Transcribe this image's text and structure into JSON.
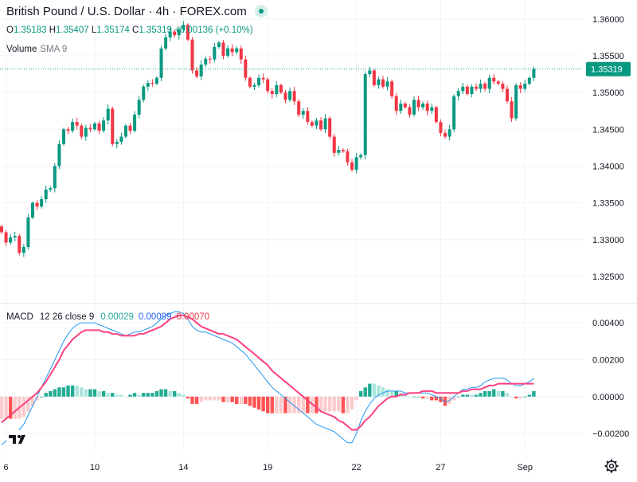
{
  "header": {
    "title": "British Pound / U.S. Dollar · 4h · FOREX.com",
    "ohlc": {
      "o_label": "O",
      "o_value": "1.35183",
      "h_label": "H",
      "h_value": "1.35407",
      "l_label": "L",
      "l_value": "1.35174",
      "c_label": "C",
      "c_value": "1.35319",
      "change": "+0.00136 (+0.10%)"
    },
    "volume_label": "Volume",
    "volume_sma": "SMA 9",
    "macd_label": "MACD",
    "macd_params": "12 26 close 9",
    "macd_values": [
      "0.00029",
      "0.00099",
      "0.00070"
    ]
  },
  "colors": {
    "up": "#089981",
    "down": "#f23645",
    "hist_up_strong": "#22ab94",
    "hist_up_weak": "#acE5dc",
    "hist_down_strong": "#ff5252",
    "hist_down_weak": "#fccbcd",
    "macd_line": "#2196f3",
    "signal_line": "#ff4081",
    "price_label_bg": "#089981",
    "grid": "#f0f3fa",
    "axis_text": "#131722"
  },
  "icons": {
    "logo": "tradingview-logo-icon",
    "settings": "gear-icon",
    "market_status": "market-open-icon"
  },
  "chart_data": [
    {
      "type": "candlestick",
      "title": "British Pound / U.S. Dollar · 4h · FOREX.com",
      "current_price": 1.35319,
      "current_price_label": "1.35319",
      "ylim": [
        1.3225,
        1.3615
      ],
      "y_ticks": [
        "1.36000",
        "1.35500",
        "1.35000",
        "1.34500",
        "1.34000",
        "1.33500",
        "1.33000",
        "1.32500"
      ],
      "x_tick_labels": [
        {
          "label": "6",
          "bar": 1
        },
        {
          "label": "10",
          "bar": 21
        },
        {
          "label": "14",
          "bar": 41
        },
        {
          "label": "19",
          "bar": 60
        },
        {
          "label": "22",
          "bar": 80
        },
        {
          "label": "27",
          "bar": 99
        },
        {
          "label": "Sep",
          "bar": 118
        }
      ],
      "close": [
        1.331,
        1.3296,
        1.3303,
        1.3305,
        1.3282,
        1.329,
        1.333,
        1.335,
        1.3345,
        1.3355,
        1.3368,
        1.337,
        1.34,
        1.343,
        1.345,
        1.3448,
        1.346,
        1.3455,
        1.344,
        1.3452,
        1.345,
        1.3458,
        1.3448,
        1.3462,
        1.3478,
        1.343,
        1.3433,
        1.344,
        1.3455,
        1.3448,
        1.347,
        1.349,
        1.3508,
        1.3513,
        1.3512,
        1.352,
        1.356,
        1.3575,
        1.3583,
        1.3578,
        1.3586,
        1.3592,
        1.3572,
        1.353,
        1.3522,
        1.3538,
        1.3546,
        1.3545,
        1.3562,
        1.3568,
        1.355,
        1.356,
        1.3555,
        1.356,
        1.3545,
        1.352,
        1.3508,
        1.351,
        1.352,
        1.3518,
        1.3502,
        1.3498,
        1.351,
        1.35,
        1.349,
        1.3502,
        1.3488,
        1.347,
        1.3475,
        1.346,
        1.3455,
        1.3462,
        1.345,
        1.3465,
        1.344,
        1.3418,
        1.3422,
        1.342,
        1.3405,
        1.3395,
        1.3412,
        1.3415,
        1.3525,
        1.353,
        1.351,
        1.3518,
        1.3508,
        1.3515,
        1.3495,
        1.3475,
        1.3485,
        1.348,
        1.347,
        1.349,
        1.348,
        1.3485,
        1.3475,
        1.348,
        1.346,
        1.3445,
        1.344,
        1.345,
        1.3495,
        1.3502,
        1.3508,
        1.3498,
        1.3508,
        1.3505,
        1.3512,
        1.3505,
        1.352,
        1.3515,
        1.3512,
        1.3505,
        1.3488,
        1.3465,
        1.351,
        1.3505,
        1.3512,
        1.352,
        1.3532
      ],
      "macd_panel": {
        "macd_ylim": [
          -0.0029,
          0.005
        ],
        "y_ticks": [
          "0.00400",
          "0.00200",
          "0.00000",
          "−0.00200"
        ],
        "macd": [
          -0.0026,
          -0.0024,
          -0.0022,
          -0.002,
          -0.0018,
          -0.0015,
          -0.001,
          -0.0005,
          0.0,
          0.0005,
          0.001,
          0.0015,
          0.002,
          0.0025,
          0.003,
          0.0034,
          0.0037,
          0.0039,
          0.004,
          0.004,
          0.004,
          0.004,
          0.0039,
          0.0038,
          0.0037,
          0.0036,
          0.0035,
          0.0034,
          0.0033,
          0.0034,
          0.0035,
          0.0035,
          0.0036,
          0.0037,
          0.0038,
          0.004,
          0.0042,
          0.0044,
          0.0045,
          0.0046,
          0.0046,
          0.0045,
          0.0042,
          0.0038,
          0.0036,
          0.0035,
          0.0035,
          0.0034,
          0.0033,
          0.0032,
          0.0031,
          0.003,
          0.0029,
          0.0027,
          0.0025,
          0.0023,
          0.002,
          0.0017,
          0.0014,
          0.0011,
          0.0008,
          0.0005,
          0.0003,
          0.0001,
          -0.0001,
          -0.0003,
          -0.0005,
          -0.0007,
          -0.0009,
          -0.0011,
          -0.0013,
          -0.0015,
          -0.0016,
          -0.0017,
          -0.0018,
          -0.0019,
          -0.0021,
          -0.0023,
          -0.0025,
          -0.0025,
          -0.002,
          -0.0013,
          -0.0008,
          -0.0004,
          -0.0001,
          0.0001,
          0.0002,
          0.0003,
          0.0003,
          0.0003,
          0.0003,
          0.0002,
          0.0002,
          0.0002,
          0.0002,
          0.0002,
          0.0002,
          0.0001,
          0.0,
          -0.0001,
          -0.0003,
          -0.0002,
          0.0,
          0.0002,
          0.0004,
          0.0004,
          0.0005,
          0.0005,
          0.0006,
          0.0008,
          0.0009,
          0.001,
          0.001,
          0.001,
          0.0009,
          0.0007,
          0.0006,
          0.0006,
          0.0007,
          0.0008,
          0.001
        ],
        "signal": [
          -0.0014,
          -0.0012,
          -0.001,
          -0.0008,
          -0.0006,
          -0.0004,
          -0.0002,
          0.0,
          0.0002,
          0.0005,
          0.0008,
          0.0012,
          0.0016,
          0.002,
          0.0025,
          0.0028,
          0.0031,
          0.0033,
          0.0035,
          0.0036,
          0.0036,
          0.0036,
          0.0036,
          0.0035,
          0.0035,
          0.0034,
          0.0034,
          0.0033,
          0.0033,
          0.0033,
          0.0033,
          0.0034,
          0.0034,
          0.0035,
          0.0036,
          0.0037,
          0.0038,
          0.004,
          0.0042,
          0.0043,
          0.0044,
          0.0044,
          0.0043,
          0.0042,
          0.004,
          0.0038,
          0.0037,
          0.0036,
          0.0035,
          0.0034,
          0.0034,
          0.0033,
          0.0032,
          0.0031,
          0.0029,
          0.0027,
          0.0025,
          0.0023,
          0.0021,
          0.0019,
          0.0017,
          0.0014,
          0.0012,
          0.001,
          0.0008,
          0.0006,
          0.0004,
          0.0002,
          0.0,
          -0.0002,
          -0.0004,
          -0.0006,
          -0.0008,
          -0.0009,
          -0.001,
          -0.0011,
          -0.0013,
          -0.0014,
          -0.0016,
          -0.0018,
          -0.0018,
          -0.0016,
          -0.0013,
          -0.0011,
          -0.0008,
          -0.0005,
          -0.0003,
          -0.0001,
          0.0,
          0.0,
          0.0001,
          0.0001,
          0.0002,
          0.0002,
          0.0002,
          0.0003,
          0.0003,
          0.0003,
          0.0002,
          0.0002,
          0.0002,
          0.0002,
          0.0002,
          0.0002,
          0.0003,
          0.0003,
          0.0004,
          0.0004,
          0.0004,
          0.0005,
          0.0006,
          0.0006,
          0.0007,
          0.0007,
          0.0007,
          0.0007,
          0.0007,
          0.0007,
          0.0007,
          0.0007,
          0.0007
        ]
      }
    }
  ]
}
